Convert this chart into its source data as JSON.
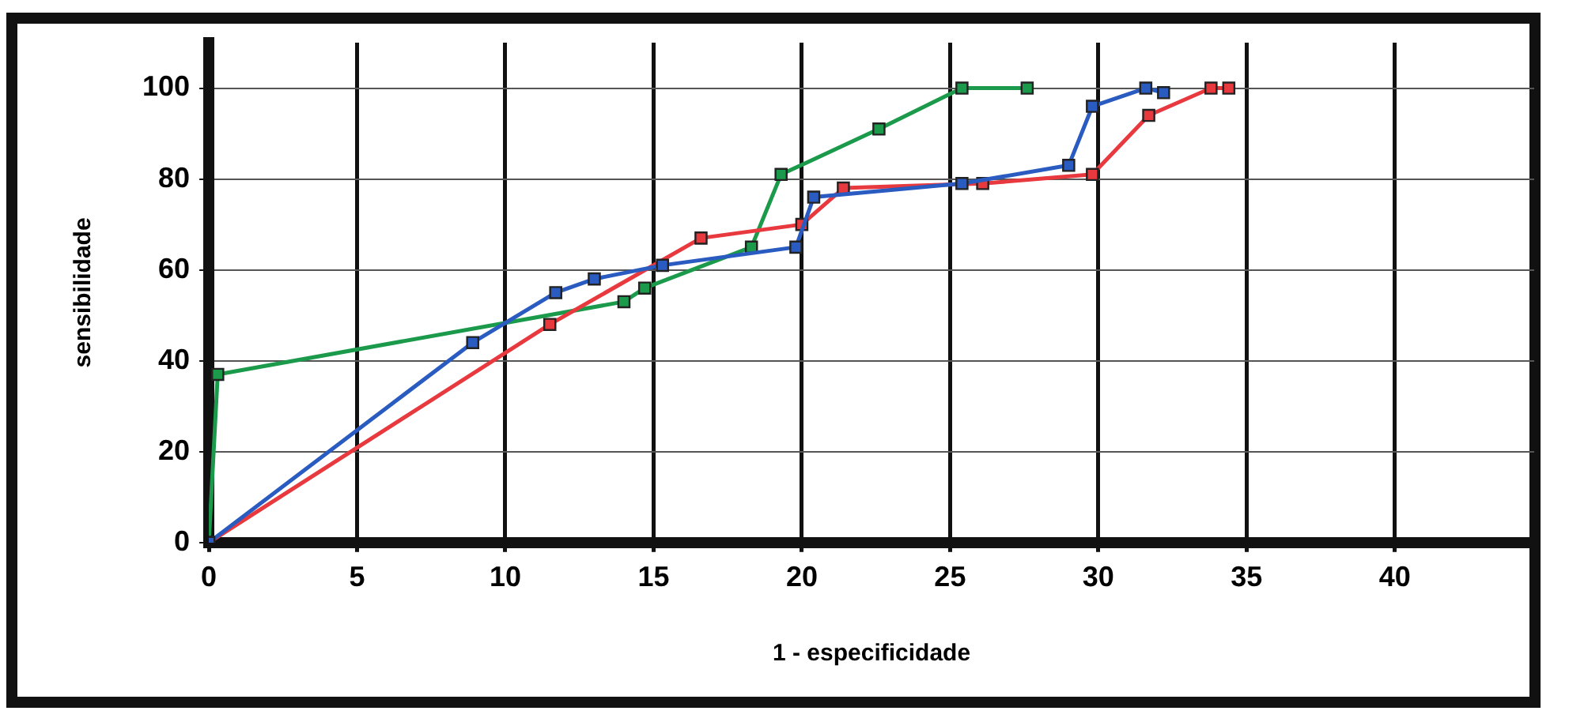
{
  "chart_data": {
    "type": "line",
    "xlabel": "1 - especificidade",
    "ylabel": "sensibilidade",
    "xlim": [
      0,
      44.7
    ],
    "xticks": [
      0,
      5,
      10,
      15,
      20,
      25,
      30,
      35,
      40
    ],
    "ylim": [
      0,
      110
    ],
    "yticks": [
      0,
      20,
      40,
      60,
      80,
      100
    ],
    "grid": true,
    "legend": false,
    "marker": "square",
    "line_style": "solid",
    "series": [
      {
        "color": "#2a5bc0",
        "x": [
          0,
          8.9,
          11.7,
          13,
          15.3,
          19.8,
          20.4,
          25.4,
          29,
          29.8,
          31.6,
          32.2
        ],
        "values": [
          0,
          44,
          55,
          58,
          61,
          65,
          76,
          79,
          83,
          96,
          100,
          99
        ]
      },
      {
        "color": "#e8393f",
        "x": [
          0,
          11.5,
          16.6,
          20,
          21.4,
          26.1,
          29.8,
          31.7,
          33.8,
          34.4
        ],
        "values": [
          0,
          48,
          67,
          70,
          78,
          79,
          81,
          94,
          100,
          100
        ]
      },
      {
        "color": "#1a9a4a",
        "x": [
          0,
          0.3,
          14,
          14.7,
          18.3,
          19.3,
          22.6,
          25.4,
          27.6
        ],
        "values": [
          0,
          37,
          53,
          56,
          65,
          81,
          91,
          100,
          100
        ]
      }
    ]
  }
}
